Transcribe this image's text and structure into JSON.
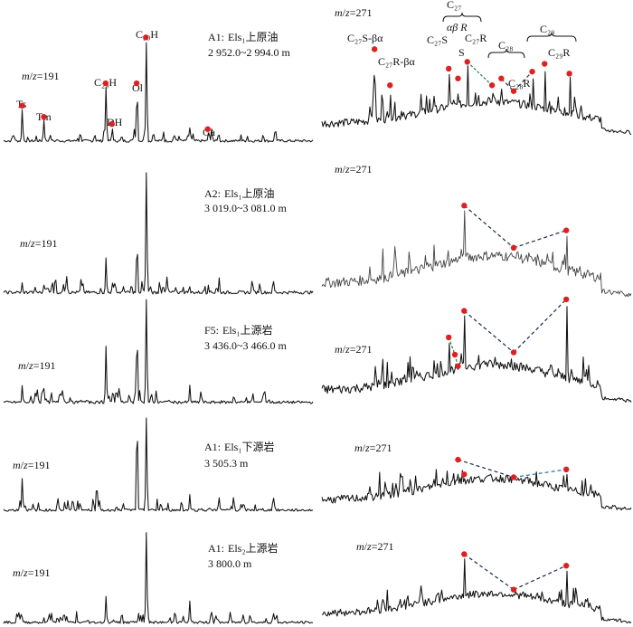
{
  "chart_data": [
    {
      "type": "line",
      "panel": "m191-A1-Els1s-oil",
      "mz_label": "m/z=191",
      "sample_well": "A1:",
      "sample_formation": "Els₁上原油",
      "depth": "2 952.0~2 994.0 m",
      "peak_labels": [
        "Ts",
        "Tm",
        "C₂₉H",
        "DH",
        "Ol",
        "C₃₀H",
        "Ga"
      ],
      "peaks": [
        [
          0.06,
          0.33
        ],
        [
          0.13,
          0.22
        ],
        [
          0.33,
          0.55
        ],
        [
          0.35,
          0.15
        ],
        [
          0.43,
          0.55
        ],
        [
          0.46,
          1.0
        ],
        [
          0.66,
          0.1
        ]
      ]
    },
    {
      "type": "line",
      "panel": "m271-A1-Els1s-oil",
      "mz_label": "m/z=271",
      "peak_labels": [
        "C₂₇S-βα",
        "C₂₇R-βα",
        "C₂₇",
        "αβ R",
        "C₂₇S",
        "S",
        "C₂₇R",
        "C₂₈",
        "C₂₈R",
        "C₂₉",
        "C₂₉R"
      ],
      "peaks": [
        [
          0.17,
          0.85
        ],
        [
          0.22,
          0.48
        ],
        [
          0.41,
          0.65
        ],
        [
          0.44,
          0.55
        ],
        [
          0.47,
          0.72
        ],
        [
          0.55,
          0.48
        ],
        [
          0.58,
          0.55
        ],
        [
          0.62,
          0.42
        ],
        [
          0.68,
          0.62
        ],
        [
          0.72,
          0.7
        ],
        [
          0.8,
          0.6
        ]
      ]
    },
    {
      "type": "line",
      "panel": "m191-A2-Els1s-oil",
      "mz_label": "m/z=191",
      "sample_well": "A2:",
      "sample_formation": "Els₁上原油",
      "depth": "3 019.0~3 081.0 m",
      "peaks": [
        [
          0.06,
          0.1
        ],
        [
          0.13,
          0.08
        ],
        [
          0.33,
          0.3
        ],
        [
          0.43,
          0.45
        ],
        [
          0.46,
          1.0
        ],
        [
          0.66,
          0.08
        ]
      ]
    },
    {
      "type": "line",
      "panel": "m271-A2-Els1s-oil",
      "mz_label": "m/z=271",
      "peaks": [
        [
          0.46,
          0.72
        ],
        [
          0.62,
          0.38
        ],
        [
          0.79,
          0.52
        ]
      ]
    },
    {
      "type": "line",
      "panel": "m191-F5-Els1s-source",
      "mz_label": "m/z=191",
      "sample_well": "F5:",
      "sample_formation": "Els₁上源岩",
      "depth": "3 436.0~3 466.0 m",
      "peaks": [
        [
          0.06,
          0.18
        ],
        [
          0.13,
          0.15
        ],
        [
          0.33,
          0.55
        ],
        [
          0.43,
          0.7
        ],
        [
          0.46,
          1.0
        ],
        [
          0.6,
          0.18
        ]
      ]
    },
    {
      "type": "line",
      "panel": "m271-F5-Els1s-source",
      "mz_label": "m/z=271",
      "peaks": [
        [
          0.41,
          0.55
        ],
        [
          0.43,
          0.4
        ],
        [
          0.44,
          0.3
        ],
        [
          0.46,
          0.78
        ],
        [
          0.62,
          0.42
        ],
        [
          0.79,
          0.88
        ]
      ]
    },
    {
      "type": "line",
      "panel": "m191-A1-Els1x-source",
      "mz_label": "m/z=191",
      "sample_well": "A1:",
      "sample_formation": "Els₁下源岩",
      "depth": "3 505.3 m",
      "peaks": [
        [
          0.06,
          0.35
        ],
        [
          0.3,
          0.32
        ],
        [
          0.43,
          1.0
        ],
        [
          0.46,
          0.98
        ],
        [
          0.6,
          0.18
        ]
      ]
    },
    {
      "type": "line",
      "panel": "m271-A1-Els1x-source",
      "mz_label": "m/z=271",
      "peaks": [
        [
          0.44,
          0.5
        ],
        [
          0.46,
          0.35
        ],
        [
          0.62,
          0.32
        ],
        [
          0.79,
          0.4
        ]
      ]
    },
    {
      "type": "line",
      "panel": "m191-A1-Els2s-source",
      "mz_label": "m/z=191",
      "sample_well": "A1:",
      "sample_formation": "Els₂上源岩",
      "depth": "3 800.0 m",
      "peaks": [
        [
          0.06,
          0.08
        ],
        [
          0.13,
          0.07
        ],
        [
          0.33,
          0.3
        ],
        [
          0.46,
          1.0
        ],
        [
          0.6,
          0.25
        ]
      ]
    },
    {
      "type": "line",
      "panel": "m271-A1-Els2s-source",
      "mz_label": "m/z=271",
      "peaks": [
        [
          0.46,
          0.75
        ],
        [
          0.62,
          0.35
        ],
        [
          0.79,
          0.62
        ]
      ]
    }
  ],
  "colors": {
    "trace": "#111111",
    "marker": "#e02020",
    "dash_link": "#1a2a4a",
    "dash_green": "#2a7a4a",
    "dash_blue": "#2a6a9a"
  }
}
